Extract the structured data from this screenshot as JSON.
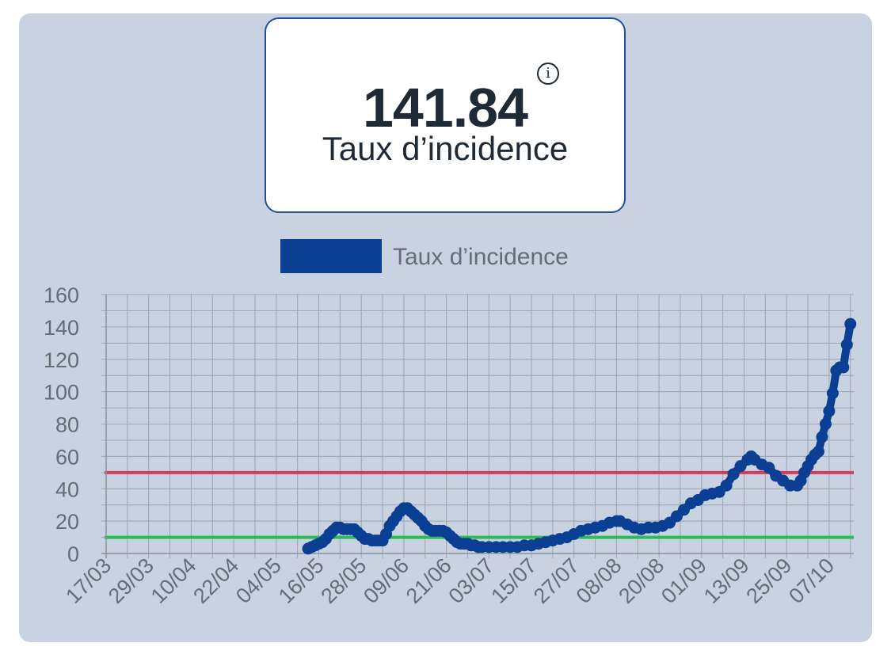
{
  "kpi": {
    "value": "141.84",
    "label": "Taux d’incidence",
    "info_icon": "info-icon"
  },
  "colors": {
    "panel_bg": "#c8d2e0",
    "series": "#0b3f94",
    "threshold_high": "#d43a5c",
    "threshold_low": "#2dbb5a",
    "grid": "#9ba4b0",
    "text": "#666c74"
  },
  "chart_data": {
    "type": "line",
    "legend": [
      "Taux d’incidence"
    ],
    "legend_position": "top-center",
    "grid": true,
    "x_ticks": [
      "17/03",
      "29/03",
      "10/04",
      "22/04",
      "04/05",
      "16/05",
      "28/05",
      "09/06",
      "21/06",
      "03/07",
      "15/07",
      "27/07",
      "08/08",
      "20/08",
      "01/09",
      "13/09",
      "25/09",
      "07/10"
    ],
    "x_tick_start": "2020-03-17",
    "x_tick_step_days": 12,
    "y_ticks": [
      "0",
      "20",
      "40",
      "60",
      "80",
      "100",
      "120",
      "140",
      "160"
    ],
    "ylim": [
      0,
      160
    ],
    "thresholds": [
      50,
      10
    ],
    "series": [
      {
        "name": "Taux d’incidence",
        "points": [
          [
            "2020-05-13",
            3
          ],
          [
            "2020-05-14",
            4
          ],
          [
            "2020-05-15",
            5
          ],
          [
            "2020-05-16",
            6
          ],
          [
            "2020-05-17",
            7
          ],
          [
            "2020-05-18",
            9
          ],
          [
            "2020-05-19",
            12
          ],
          [
            "2020-05-20",
            14
          ],
          [
            "2020-05-21",
            16
          ],
          [
            "2020-05-22",
            16
          ],
          [
            "2020-05-23",
            15
          ],
          [
            "2020-05-24",
            15
          ],
          [
            "2020-05-25",
            15
          ],
          [
            "2020-05-26",
            15
          ],
          [
            "2020-05-27",
            13
          ],
          [
            "2020-05-28",
            11
          ],
          [
            "2020-05-29",
            9
          ],
          [
            "2020-05-30",
            9
          ],
          [
            "2020-05-31",
            8
          ],
          [
            "2020-06-01",
            8
          ],
          [
            "2020-06-02",
            8
          ],
          [
            "2020-06-03",
            8
          ],
          [
            "2020-06-04",
            12
          ],
          [
            "2020-06-05",
            17
          ],
          [
            "2020-06-06",
            20
          ],
          [
            "2020-06-07",
            23
          ],
          [
            "2020-06-08",
            26
          ],
          [
            "2020-06-09",
            28
          ],
          [
            "2020-06-10",
            28
          ],
          [
            "2020-06-11",
            26
          ],
          [
            "2020-06-12",
            24
          ],
          [
            "2020-06-13",
            22
          ],
          [
            "2020-06-14",
            20
          ],
          [
            "2020-06-15",
            17
          ],
          [
            "2020-06-16",
            15
          ],
          [
            "2020-06-17",
            14
          ],
          [
            "2020-06-18",
            14
          ],
          [
            "2020-06-19",
            14
          ],
          [
            "2020-06-20",
            14
          ],
          [
            "2020-06-21",
            13
          ],
          [
            "2020-06-22",
            11
          ],
          [
            "2020-06-23",
            9
          ],
          [
            "2020-06-24",
            7
          ],
          [
            "2020-06-25",
            6
          ],
          [
            "2020-06-26",
            6
          ],
          [
            "2020-06-27",
            6
          ],
          [
            "2020-06-28",
            5
          ],
          [
            "2020-06-29",
            5
          ],
          [
            "2020-06-30",
            4
          ],
          [
            "2020-07-01",
            4
          ],
          [
            "2020-07-03",
            4
          ],
          [
            "2020-07-05",
            4
          ],
          [
            "2020-07-07",
            4
          ],
          [
            "2020-07-09",
            4
          ],
          [
            "2020-07-11",
            4
          ],
          [
            "2020-07-13",
            5
          ],
          [
            "2020-07-15",
            5
          ],
          [
            "2020-07-17",
            6
          ],
          [
            "2020-07-19",
            7
          ],
          [
            "2020-07-21",
            8
          ],
          [
            "2020-07-23",
            9
          ],
          [
            "2020-07-25",
            10
          ],
          [
            "2020-07-27",
            12
          ],
          [
            "2020-07-29",
            14
          ],
          [
            "2020-07-31",
            15
          ],
          [
            "2020-08-02",
            16
          ],
          [
            "2020-08-04",
            17
          ],
          [
            "2020-08-06",
            19
          ],
          [
            "2020-08-08",
            20
          ],
          [
            "2020-08-09",
            20
          ],
          [
            "2020-08-11",
            18
          ],
          [
            "2020-08-13",
            16
          ],
          [
            "2020-08-15",
            15
          ],
          [
            "2020-08-17",
            16
          ],
          [
            "2020-08-19",
            16
          ],
          [
            "2020-08-21",
            17
          ],
          [
            "2020-08-23",
            19
          ],
          [
            "2020-08-25",
            23
          ],
          [
            "2020-08-27",
            27
          ],
          [
            "2020-08-29",
            31
          ],
          [
            "2020-08-31",
            33
          ],
          [
            "2020-09-02",
            36
          ],
          [
            "2020-09-04",
            37
          ],
          [
            "2020-09-06",
            38
          ],
          [
            "2020-09-08",
            42
          ],
          [
            "2020-09-10",
            49
          ],
          [
            "2020-09-12",
            54
          ],
          [
            "2020-09-14",
            58
          ],
          [
            "2020-09-15",
            60
          ],
          [
            "2020-09-16",
            58
          ],
          [
            "2020-09-18",
            55
          ],
          [
            "2020-09-20",
            53
          ],
          [
            "2020-09-22",
            48
          ],
          [
            "2020-09-24",
            45
          ],
          [
            "2020-09-26",
            42
          ],
          [
            "2020-09-28",
            42
          ],
          [
            "2020-09-29",
            45
          ],
          [
            "2020-09-30",
            50
          ],
          [
            "2020-10-01",
            54
          ],
          [
            "2020-10-02",
            58
          ],
          [
            "2020-10-03",
            61
          ],
          [
            "2020-10-04",
            63
          ],
          [
            "2020-10-05",
            72
          ],
          [
            "2020-10-06",
            80
          ],
          [
            "2020-10-07",
            88
          ],
          [
            "2020-10-08",
            99
          ],
          [
            "2020-10-09",
            113
          ],
          [
            "2020-10-10",
            115
          ],
          [
            "2020-10-11",
            115
          ],
          [
            "2020-10-12",
            129
          ],
          [
            "2020-10-13",
            141.84
          ]
        ]
      }
    ]
  }
}
